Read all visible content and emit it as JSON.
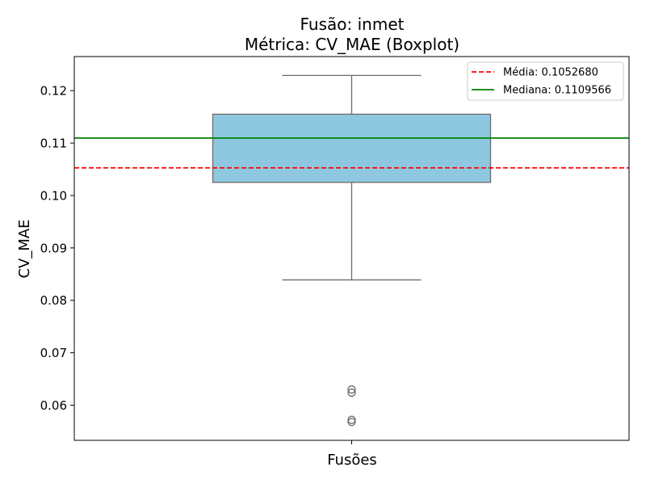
{
  "chart_data": {
    "type": "boxplot",
    "title": "Fusão: inmet",
    "subtitle": "Métrica: CV_MAE (Boxplot)",
    "xlabel": "Fusões",
    "ylabel": "CV_MAE",
    "ylim": [
      0.0533,
      0.1265
    ],
    "y_ticks": [
      0.06,
      0.07,
      0.08,
      0.09,
      0.1,
      0.11,
      0.12
    ],
    "y_tick_labels": [
      "0.06",
      "0.07",
      "0.08",
      "0.09",
      "0.10",
      "0.11",
      "0.12"
    ],
    "box": {
      "whisker_low": 0.0839,
      "q1": 0.1025,
      "median": 0.1109566,
      "q3": 0.1155,
      "whisker_high": 0.1229,
      "outliers": [
        0.063,
        0.0624,
        0.0572,
        0.0568
      ],
      "color": "#8ec8e0",
      "edge_color": "#6b6b6b"
    },
    "reference_lines": [
      {
        "label": "Média: 0.1052680",
        "value": 0.105268,
        "color": "#ff0000",
        "style": "dashed"
      },
      {
        "label": "Mediana: 0.1109566",
        "value": 0.1109566,
        "color": "#008000",
        "style": "solid"
      }
    ],
    "legend_position": "top-right",
    "grid": false
  }
}
